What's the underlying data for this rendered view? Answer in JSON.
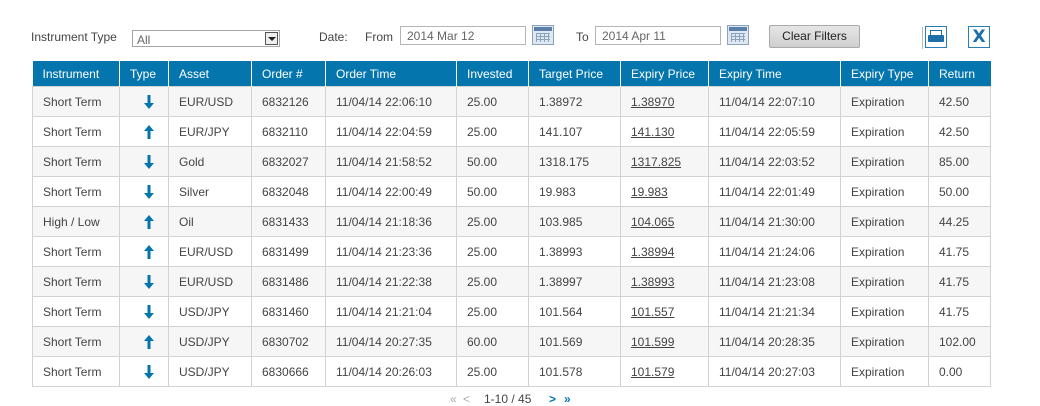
{
  "filters": {
    "instrument_type_label": "Instrument Type",
    "instrument_type_value": "All",
    "date_label": "Date:",
    "from_label": "From",
    "from_value": "2014 Mar 12",
    "to_label": "To",
    "to_value": "2014 Apr 11",
    "clear_label": "Clear Filters"
  },
  "toolbar": {
    "print_icon": "print-icon",
    "excel_icon": "excel-export-icon"
  },
  "colors": {
    "header_bg": "#0576ad",
    "arrow": "#0576ad"
  },
  "table": {
    "columns": [
      "Instrument",
      "Type",
      "Asset",
      "Order #",
      "Order Time",
      "Invested",
      "Target Price",
      "Expiry Price",
      "Expiry Time",
      "Expiry Type",
      "Return"
    ],
    "rows": [
      {
        "instrument": "Short Term",
        "type": "down",
        "asset": "EUR/USD",
        "order": "6832126",
        "order_time": "11/04/14 22:06:10",
        "invested": "25.00",
        "target": "1.38972",
        "expiry_price": "1.38970",
        "expiry_time": "11/04/14 22:07:10",
        "expiry_type": "Expiration",
        "return": "42.50"
      },
      {
        "instrument": "Short Term",
        "type": "up",
        "asset": "EUR/JPY",
        "order": "6832110",
        "order_time": "11/04/14 22:04:59",
        "invested": "25.00",
        "target": "141.107",
        "expiry_price": "141.130",
        "expiry_time": "11/04/14 22:05:59",
        "expiry_type": "Expiration",
        "return": "42.50"
      },
      {
        "instrument": "Short Term",
        "type": "down",
        "asset": "Gold",
        "order": "6832027",
        "order_time": "11/04/14 21:58:52",
        "invested": "50.00",
        "target": "1318.175",
        "expiry_price": "1317.825",
        "expiry_time": "11/04/14 22:03:52",
        "expiry_type": "Expiration",
        "return": "85.00"
      },
      {
        "instrument": "Short Term",
        "type": "down",
        "asset": "Silver",
        "order": "6832048",
        "order_time": "11/04/14 22:00:49",
        "invested": "50.00",
        "target": "19.983",
        "expiry_price": "19.983",
        "expiry_time": "11/04/14 22:01:49",
        "expiry_type": "Expiration",
        "return": "50.00"
      },
      {
        "instrument": "High / Low",
        "type": "up",
        "asset": "Oil",
        "order": "6831433",
        "order_time": "11/04/14 21:18:36",
        "invested": "25.00",
        "target": "103.985",
        "expiry_price": "104.065",
        "expiry_time": "11/04/14 21:30:00",
        "expiry_type": "Expiration",
        "return": "44.25"
      },
      {
        "instrument": "Short Term",
        "type": "up",
        "asset": "EUR/USD",
        "order": "6831499",
        "order_time": "11/04/14 21:23:36",
        "invested": "25.00",
        "target": "1.38993",
        "expiry_price": "1.38994",
        "expiry_time": "11/04/14 21:24:06",
        "expiry_type": "Expiration",
        "return": "41.75"
      },
      {
        "instrument": "Short Term",
        "type": "down",
        "asset": "EUR/USD",
        "order": "6831486",
        "order_time": "11/04/14 21:22:38",
        "invested": "25.00",
        "target": "1.38997",
        "expiry_price": "1.38993",
        "expiry_time": "11/04/14 21:23:08",
        "expiry_type": "Expiration",
        "return": "41.75"
      },
      {
        "instrument": "Short Term",
        "type": "down",
        "asset": "USD/JPY",
        "order": "6831460",
        "order_time": "11/04/14 21:21:04",
        "invested": "25.00",
        "target": "101.564",
        "expiry_price": "101.557",
        "expiry_time": "11/04/14 21:21:34",
        "expiry_type": "Expiration",
        "return": "41.75"
      },
      {
        "instrument": "Short Term",
        "type": "up",
        "asset": "USD/JPY",
        "order": "6830702",
        "order_time": "11/04/14 20:27:35",
        "invested": "60.00",
        "target": "101.569",
        "expiry_price": "101.599",
        "expiry_time": "11/04/14 20:28:35",
        "expiry_type": "Expiration",
        "return": "102.00"
      },
      {
        "instrument": "Short Term",
        "type": "down",
        "asset": "USD/JPY",
        "order": "6830666",
        "order_time": "11/04/14 20:26:03",
        "invested": "25.00",
        "target": "101.578",
        "expiry_price": "101.579",
        "expiry_time": "11/04/14 20:27:03",
        "expiry_type": "Expiration",
        "return": "0.00"
      }
    ]
  },
  "pagination": {
    "first": "«",
    "prev": "<",
    "range": "1-10 / 45",
    "next": ">",
    "last": "»"
  }
}
